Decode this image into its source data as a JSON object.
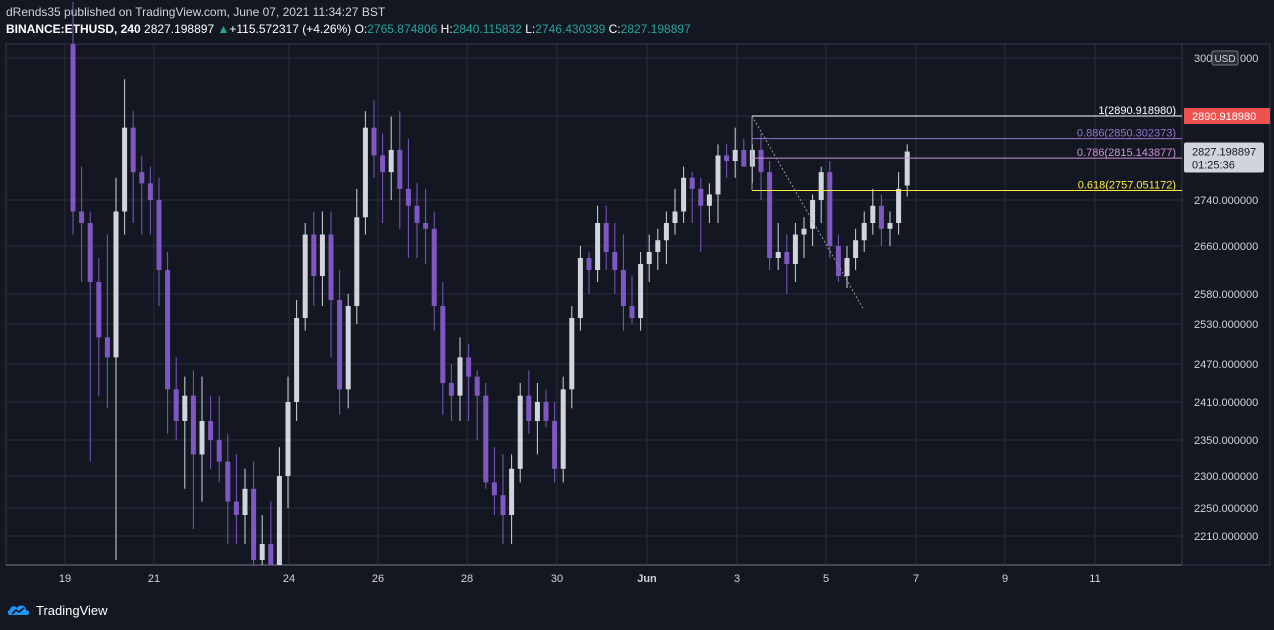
{
  "header": {
    "publisher_line": "dRends35 published on TradingView.com, June 07, 2021 11:34:27 BST",
    "symbol": "BINANCE:ETHUSD, 240",
    "last": "2827.198897",
    "change_arrow": "▲",
    "change": "+115.572317 (+4.26%)",
    "o_label": "O:",
    "o_value": "2765.874806",
    "h_label": "H:",
    "h_value": "2840.115832",
    "l_label": "L:",
    "l_value": "2746.430339",
    "c_label": "C:",
    "c_value": "2827.198897"
  },
  "footer": {
    "brand": "TradingView"
  },
  "colors": {
    "background": "#131722",
    "bull": "#d1d4dc",
    "bear": "#7e57c2",
    "grid": "#2a2e39",
    "fib_1": "#ffffff",
    "fib_0886": "#9575cd",
    "fib_0786": "#ce93d8",
    "fib_0618": "#ffeb3b",
    "price_tag_red": "#ef5350"
  },
  "chart_data": {
    "type": "candlestick",
    "currency_label": "USD",
    "y_tick_labels": [
      "300",
      "000",
      "2890.918980",
      "2740.000000",
      "2660.000000",
      "2580.000000",
      "2530.000000",
      "2470.000000",
      "2410.000000",
      "2350.000000",
      "2300.000000",
      "2250.000000",
      "2210.000000"
    ],
    "y_tick_values": [
      3000,
      2890.91898,
      2740,
      2660,
      2580,
      2530,
      2470,
      2410,
      2350,
      2300,
      2250,
      2210
    ],
    "x_tick_labels": [
      "19",
      "21",
      "24",
      "26",
      "28",
      "30",
      "Jun",
      "3",
      "5",
      "7",
      "9",
      "11"
    ],
    "price_tag": {
      "value": "2890.918980"
    },
    "last_price_tag": {
      "value": "2827.198897",
      "countdown": "01:25:36"
    },
    "fib_levels": [
      {
        "ratio": "1",
        "label": "1(2890.918980)",
        "price": 2890.91898
      },
      {
        "ratio": "0.886",
        "label": "0.886(2850.302373)",
        "price": 2850.302373
      },
      {
        "ratio": "0.786",
        "label": "0.786(2815.143877)",
        "price": 2815.143877
      },
      {
        "ratio": "0.618",
        "label": "0.618(2757.051172)",
        "price": 2757.051172
      }
    ],
    "candles": [
      [
        3020,
        3080,
        2680,
        2720
      ],
      [
        2720,
        2800,
        2600,
        2700
      ],
      [
        2700,
        2720,
        2320,
        2600
      ],
      [
        2600,
        2640,
        2420,
        2510
      ],
      [
        2510,
        2680,
        2400,
        2480
      ],
      [
        2480,
        2780,
        2180,
        2720
      ],
      [
        2720,
        2960,
        2680,
        2870
      ],
      [
        2870,
        2900,
        2700,
        2790
      ],
      [
        2790,
        2820,
        2680,
        2770
      ],
      [
        2770,
        2800,
        2680,
        2740
      ],
      [
        2740,
        2780,
        2560,
        2620
      ],
      [
        2620,
        2650,
        2360,
        2430
      ],
      [
        2430,
        2480,
        2350,
        2380
      ],
      [
        2380,
        2450,
        2280,
        2420
      ],
      [
        2420,
        2460,
        2220,
        2330
      ],
      [
        2330,
        2450,
        2260,
        2380
      ],
      [
        2380,
        2420,
        2310,
        2350
      ],
      [
        2350,
        2420,
        2290,
        2320
      ],
      [
        2320,
        2360,
        2200,
        2260
      ],
      [
        2260,
        2330,
        2200,
        2240
      ],
      [
        2240,
        2310,
        2200,
        2280
      ],
      [
        2280,
        2320,
        2160,
        2180
      ],
      [
        2180,
        2240,
        2140,
        2200
      ],
      [
        2200,
        2260,
        2130,
        2150
      ],
      [
        2150,
        2340,
        2120,
        2300
      ],
      [
        2300,
        2450,
        2250,
        2410
      ],
      [
        2410,
        2570,
        2380,
        2540
      ],
      [
        2540,
        2700,
        2520,
        2680
      ],
      [
        2680,
        2720,
        2560,
        2610
      ],
      [
        2610,
        2720,
        2560,
        2680
      ],
      [
        2680,
        2720,
        2480,
        2570
      ],
      [
        2570,
        2620,
        2390,
        2430
      ],
      [
        2430,
        2580,
        2400,
        2560
      ],
      [
        2560,
        2760,
        2530,
        2710
      ],
      [
        2710,
        2900,
        2680,
        2870
      ],
      [
        2870,
        2920,
        2780,
        2820
      ],
      [
        2820,
        2860,
        2700,
        2790
      ],
      [
        2790,
        2890,
        2740,
        2830
      ],
      [
        2830,
        2900,
        2690,
        2760
      ],
      [
        2760,
        2850,
        2640,
        2730
      ],
      [
        2730,
        2770,
        2640,
        2700
      ],
      [
        2700,
        2760,
        2630,
        2690
      ],
      [
        2690,
        2720,
        2520,
        2560
      ],
      [
        2560,
        2600,
        2390,
        2440
      ],
      [
        2440,
        2470,
        2380,
        2420
      ],
      [
        2420,
        2510,
        2380,
        2480
      ],
      [
        2480,
        2500,
        2380,
        2450
      ],
      [
        2450,
        2460,
        2350,
        2420
      ],
      [
        2420,
        2440,
        2280,
        2290
      ],
      [
        2290,
        2340,
        2240,
        2270
      ],
      [
        2270,
        2330,
        2200,
        2240
      ],
      [
        2240,
        2330,
        2200,
        2310
      ],
      [
        2310,
        2440,
        2290,
        2420
      ],
      [
        2420,
        2460,
        2360,
        2380
      ],
      [
        2380,
        2440,
        2330,
        2410
      ],
      [
        2410,
        2430,
        2370,
        2380
      ],
      [
        2380,
        2410,
        2290,
        2310
      ],
      [
        2310,
        2450,
        2290,
        2430
      ],
      [
        2430,
        2560,
        2400,
        2540
      ],
      [
        2540,
        2660,
        2520,
        2640
      ],
      [
        2640,
        2650,
        2580,
        2620
      ],
      [
        2620,
        2730,
        2600,
        2700
      ],
      [
        2700,
        2730,
        2620,
        2650
      ],
      [
        2650,
        2700,
        2580,
        2620
      ],
      [
        2620,
        2680,
        2520,
        2560
      ],
      [
        2560,
        2610,
        2530,
        2540
      ],
      [
        2540,
        2650,
        2520,
        2630
      ],
      [
        2630,
        2680,
        2600,
        2650
      ],
      [
        2650,
        2690,
        2620,
        2670
      ],
      [
        2670,
        2720,
        2630,
        2700
      ],
      [
        2700,
        2760,
        2680,
        2720
      ],
      [
        2720,
        2800,
        2700,
        2780
      ],
      [
        2780,
        2790,
        2700,
        2760
      ],
      [
        2760,
        2780,
        2650,
        2730
      ],
      [
        2730,
        2770,
        2700,
        2750
      ],
      [
        2750,
        2840,
        2700,
        2820
      ],
      [
        2820,
        2840,
        2780,
        2810
      ],
      [
        2810,
        2870,
        2780,
        2830
      ],
      [
        2830,
        2850,
        2800,
        2800
      ],
      [
        2800,
        2840,
        2770,
        2830
      ],
      [
        2830,
        2860,
        2740,
        2790
      ],
      [
        2790,
        2810,
        2620,
        2640
      ],
      [
        2640,
        2700,
        2620,
        2650
      ],
      [
        2650,
        2680,
        2580,
        2630
      ],
      [
        2630,
        2700,
        2600,
        2680
      ],
      [
        2680,
        2710,
        2640,
        2690
      ],
      [
        2690,
        2750,
        2660,
        2740
      ],
      [
        2740,
        2800,
        2700,
        2790
      ],
      [
        2790,
        2810,
        2640,
        2660
      ],
      [
        2660,
        2680,
        2600,
        2610
      ],
      [
        2610,
        2660,
        2590,
        2640
      ],
      [
        2640,
        2690,
        2620,
        2670
      ],
      [
        2670,
        2720,
        2650,
        2700
      ],
      [
        2700,
        2760,
        2680,
        2730
      ],
      [
        2730,
        2750,
        2660,
        2690
      ],
      [
        2690,
        2720,
        2660,
        2700
      ],
      [
        2700,
        2790,
        2680,
        2760
      ],
      [
        2766,
        2840,
        2746,
        2827
      ]
    ]
  }
}
